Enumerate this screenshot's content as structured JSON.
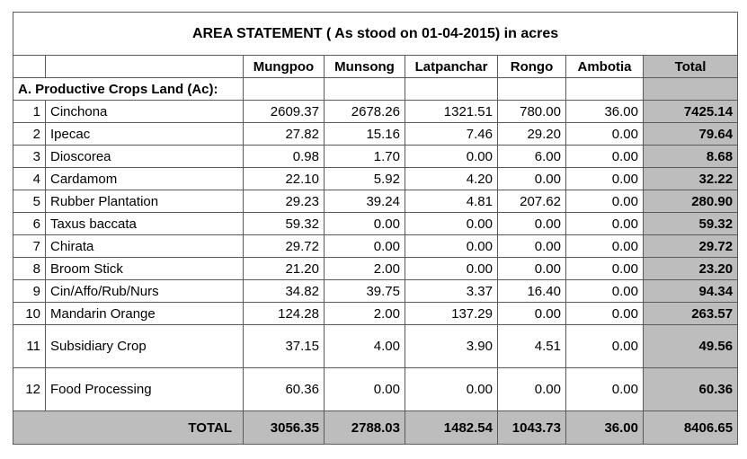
{
  "title": "AREA STATEMENT ( As stood on 01-04-2015) in acres",
  "columns": [
    "Mungpoo",
    "Munsong",
    "Latpanchar",
    "Rongo",
    "Ambotia",
    "Total"
  ],
  "section_label": "A. Productive Crops Land (Ac):",
  "rows": [
    {
      "no": "1",
      "name": "Cinchona",
      "values": [
        "2609.37",
        "2678.26",
        "1321.51",
        "780.00",
        "36.00",
        "7425.14"
      ]
    },
    {
      "no": "2",
      "name": "Ipecac",
      "values": [
        "27.82",
        "15.16",
        "7.46",
        "29.20",
        "0.00",
        "79.64"
      ]
    },
    {
      "no": "3",
      "name": "Dioscorea",
      "values": [
        "0.98",
        "1.70",
        "0.00",
        "6.00",
        "0.00",
        "8.68"
      ]
    },
    {
      "no": "4",
      "name": "Cardamom",
      "values": [
        "22.10",
        "5.92",
        "4.20",
        "0.00",
        "0.00",
        "32.22"
      ]
    },
    {
      "no": "5",
      "name": "Rubber Plantation",
      "values": [
        "29.23",
        "39.24",
        "4.81",
        "207.62",
        "0.00",
        "280.90"
      ]
    },
    {
      "no": "6",
      "name": "Taxus baccata",
      "values": [
        "59.32",
        "0.00",
        "0.00",
        "0.00",
        "0.00",
        "59.32"
      ]
    },
    {
      "no": "7",
      "name": "Chirata",
      "values": [
        "29.72",
        "0.00",
        "0.00",
        "0.00",
        "0.00",
        "29.72"
      ]
    },
    {
      "no": "8",
      "name": "Broom Stick",
      "values": [
        "21.20",
        "2.00",
        "0.00",
        "0.00",
        "0.00",
        "23.20"
      ]
    },
    {
      "no": "9",
      "name": "Cin/Affo/Rub/Nurs",
      "values": [
        "34.82",
        "39.75",
        "3.37",
        "16.40",
        "0.00",
        "94.34"
      ]
    },
    {
      "no": "10",
      "name": "Mandarin Orange",
      "values": [
        "124.28",
        "2.00",
        "137.29",
        "0.00",
        "0.00",
        "263.57"
      ]
    },
    {
      "no": "11",
      "name": "Subsidiary Crop",
      "values": [
        "37.15",
        "4.00",
        "3.90",
        "4.51",
        "0.00",
        "49.56"
      ]
    },
    {
      "no": "12",
      "name": "Food Processing",
      "values": [
        "60.36",
        "0.00",
        "0.00",
        "0.00",
        "0.00",
        "60.36"
      ]
    }
  ],
  "total": {
    "label": "TOTAL",
    "values": [
      "3056.35",
      "2788.03",
      "1482.54",
      "1043.73",
      "36.00",
      "8406.65"
    ]
  },
  "colors": {
    "total_fill": "#bdbdbd",
    "border": "#5a5a5a"
  }
}
